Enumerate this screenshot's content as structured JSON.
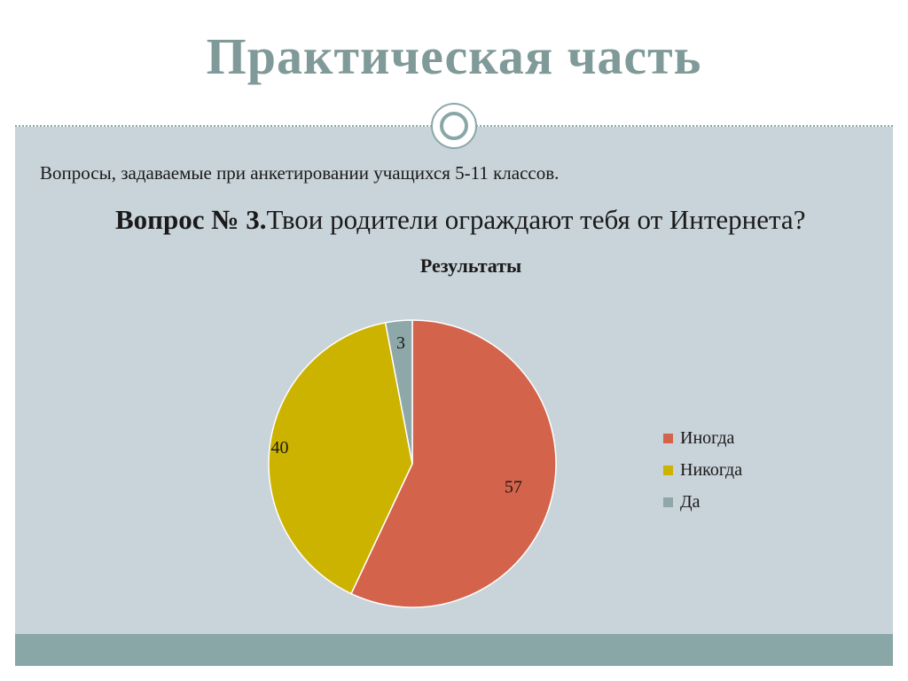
{
  "slide": {
    "title": "Практическая часть",
    "subtitle": "Вопросы, задаваемые при анкетировании учащихся  5-11 классов.",
    "question_label": "Вопрос № 3.",
    "question_text": "Твои родители ограждают тебя от Интернета?"
  },
  "chart_data": {
    "type": "pie",
    "title": "Результаты",
    "categories": [
      "Иногда",
      "Никогда",
      "Да"
    ],
    "values": [
      57,
      40,
      3
    ],
    "colors": [
      "#d4634b",
      "#ccb300",
      "#8ea7a8"
    ],
    "legend_position": "right"
  }
}
